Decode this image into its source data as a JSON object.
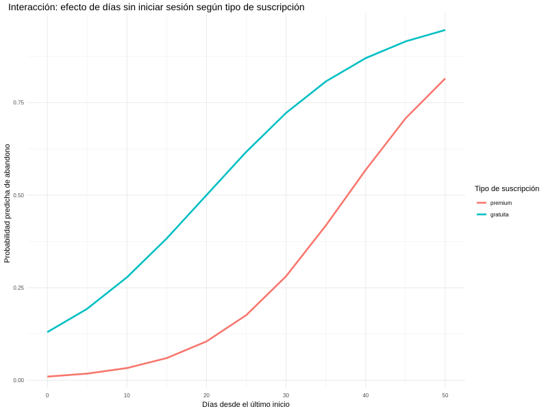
{
  "chart_data": {
    "type": "line",
    "title": "Interacción: efecto de días sin iniciar sesión según tipo de suscripción",
    "xlabel": "Días desde el último inicio",
    "ylabel": "Probabilidad predicha de abandono",
    "x": [
      0,
      5,
      10,
      15,
      20,
      25,
      30,
      35,
      40,
      45,
      50
    ],
    "xlim": [
      -2.5,
      52.5
    ],
    "ylim": [
      -0.02,
      0.99
    ],
    "x_ticks": [
      0,
      10,
      20,
      30,
      40,
      50
    ],
    "x_tick_labels": [
      "0",
      "10",
      "20",
      "30",
      "40",
      "50"
    ],
    "y_ticks": [
      0.0,
      0.25,
      0.5,
      0.75
    ],
    "y_tick_labels": [
      "0.00",
      "0.25",
      "0.50",
      "0.75"
    ],
    "grid": true,
    "legend": {
      "title": "Tipo de suscripción",
      "position": "right"
    },
    "series": [
      {
        "name": "premium",
        "color": "#F8766D",
        "values": [
          0.01,
          0.018,
          0.033,
          0.06,
          0.105,
          0.176,
          0.281,
          0.418,
          0.568,
          0.707,
          0.815
        ]
      },
      {
        "name": "gratuita",
        "color": "#00BFC4",
        "values": [
          0.13,
          0.193,
          0.278,
          0.383,
          0.5,
          0.617,
          0.722,
          0.807,
          0.87,
          0.915,
          0.946
        ]
      }
    ]
  }
}
